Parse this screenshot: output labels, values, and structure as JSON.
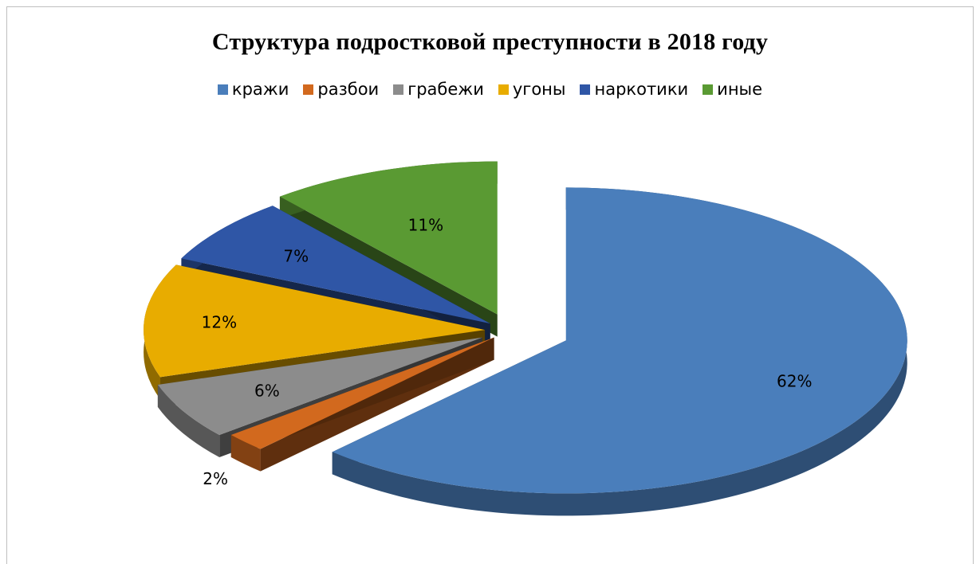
{
  "chart_data": {
    "type": "pie",
    "title": "Структура подростковой преступности в 2018 году",
    "categories": [
      "кражи",
      "разбои",
      "грабежи",
      "угоны",
      "наркотики",
      "иные"
    ],
    "values": [
      62,
      2,
      6,
      12,
      7,
      11
    ],
    "value_labels": [
      "62%",
      "2%",
      "6%",
      "12%",
      "7%",
      "11%"
    ],
    "colors": [
      "#4a7ebb",
      "#d2691e",
      "#8c8c8c",
      "#e8ac00",
      "#2f56a6",
      "#5a9a33"
    ],
    "legend_position": "top",
    "style": "3d-exploded"
  }
}
